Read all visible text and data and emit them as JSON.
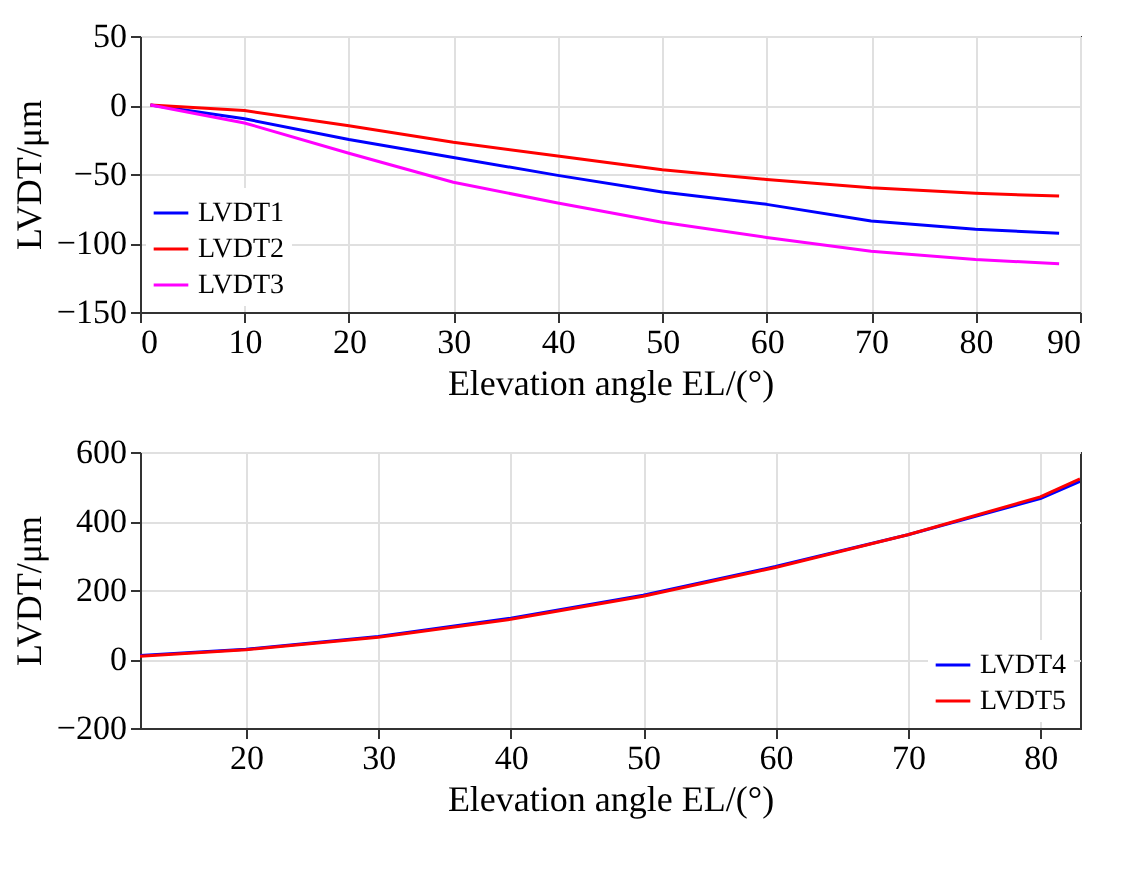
{
  "chart_data": [
    {
      "type": "line",
      "xlabel": "Elevation angle EL/(°)",
      "ylabel": "LVDT/μm",
      "xlim": [
        0,
        90
      ],
      "xticks": [
        0,
        10,
        20,
        30,
        40,
        50,
        60,
        70,
        80,
        90
      ],
      "ylim": [
        -150,
        50
      ],
      "yticks": [
        -150,
        -100,
        -50,
        0,
        50
      ],
      "grid": true,
      "legend": "bottom left",
      "line_style": "solid",
      "x": [
        1,
        10,
        20,
        30,
        40,
        50,
        60,
        70,
        80,
        88
      ],
      "series": [
        {
          "name": "LVDT1",
          "color": "#0000ff",
          "values": [
            0,
            -10,
            -25,
            -38,
            -51,
            -63,
            -72,
            -84,
            -90,
            -93
          ]
        },
        {
          "name": "LVDT2",
          "color": "#ff0000",
          "values": [
            0,
            -4,
            -15,
            -27,
            -37,
            -47,
            -54,
            -60,
            -64,
            -66
          ]
        },
        {
          "name": "LVDT3",
          "color": "#ff00ff",
          "values": [
            0,
            -13,
            -35,
            -56,
            -71,
            -85,
            -96,
            -106,
            -112,
            -115
          ]
        }
      ]
    },
    {
      "type": "line",
      "xlabel": "Elevation angle EL/(°)",
      "ylabel": "LVDT/μm",
      "xlim": [
        12,
        83
      ],
      "xticks": [
        20,
        30,
        40,
        50,
        60,
        70,
        80
      ],
      "ylim": [
        -200,
        600
      ],
      "yticks": [
        -200,
        0,
        200,
        400,
        600
      ],
      "grid": true,
      "legend": "bottom right",
      "line_style": "solid",
      "x": [
        12,
        20,
        30,
        40,
        50,
        60,
        70,
        80,
        83
      ],
      "series": [
        {
          "name": "LVDT4",
          "color": "#0000ff",
          "values": [
            10,
            28,
            65,
            118,
            185,
            268,
            360,
            465,
            515
          ]
        },
        {
          "name": "LVDT5",
          "color": "#ff0000",
          "values": [
            8,
            27,
            63,
            115,
            182,
            265,
            360,
            470,
            522
          ]
        }
      ]
    }
  ]
}
